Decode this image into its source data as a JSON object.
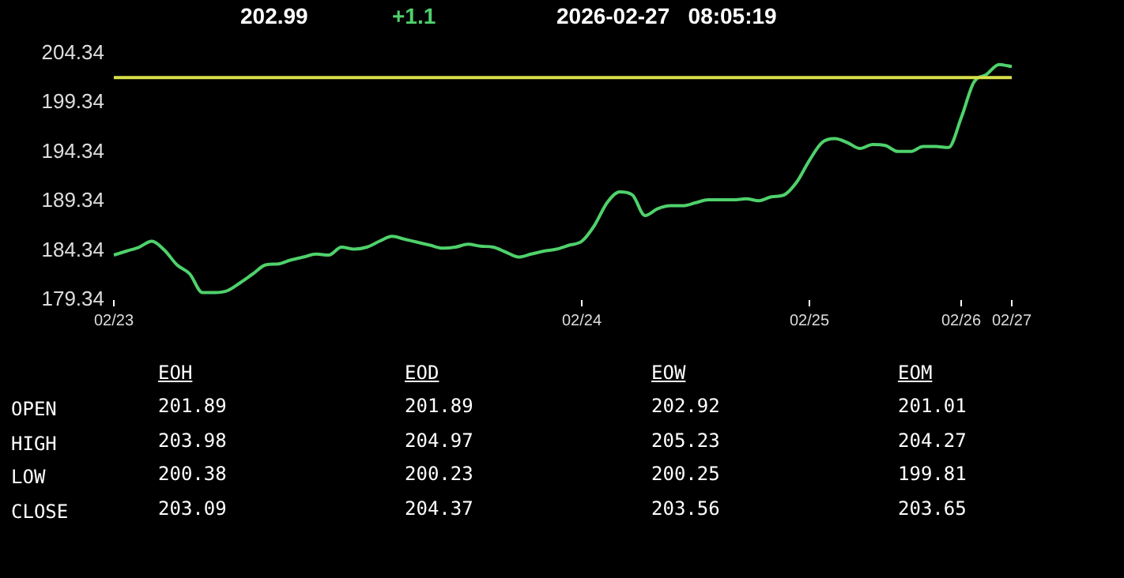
{
  "chart_data": [
    {
      "type": "line",
      "annotations": [
        "202.99",
        "+1.1",
        "2026-02-27   08:05:19"
      ],
      "categories": [
        "02/23",
        null,
        null,
        null,
        null,
        null,
        null,
        null,
        null,
        null,
        null,
        null,
        null,
        null,
        null,
        null,
        null,
        null,
        null,
        null,
        null,
        null,
        null,
        null,
        null,
        null,
        null,
        null,
        null,
        null,
        null,
        null,
        null,
        null,
        null,
        null,
        null,
        "02/24",
        null,
        null,
        null,
        null,
        null,
        null,
        null,
        null,
        null,
        null,
        null,
        null,
        null,
        null,
        null,
        null,
        null,
        "02/25",
        null,
        null,
        null,
        null,
        null,
        null,
        null,
        null,
        null,
        null,
        null,
        "02/26",
        null,
        null,
        null,
        "02/27"
      ],
      "ylim": [
        179.34,
        204.34
      ],
      "yticks": [
        179.34,
        184.34,
        189.34,
        194.34,
        199.34,
        204.34
      ],
      "series": [
        {
          "color": "#4fd16b",
          "values": [
            183.9,
            184.3,
            184.7,
            185.3,
            184.4,
            182.9,
            182.0,
            180.1,
            180.1,
            180.3,
            181.1,
            182.0,
            182.9,
            183.0,
            183.4,
            183.7,
            184.0,
            183.9,
            184.7,
            184.5,
            184.7,
            185.3,
            185.8,
            185.5,
            185.2,
            184.9,
            184.6,
            184.7,
            185.0,
            184.8,
            184.7,
            184.2,
            183.7,
            184.0,
            184.3,
            184.5,
            184.9,
            185.3,
            186.9,
            189.2,
            190.3,
            190.0,
            187.9,
            188.6,
            188.9,
            188.9,
            189.2,
            189.5,
            189.5,
            189.5,
            189.6,
            189.4,
            189.8,
            190.0,
            191.3,
            193.5,
            195.3,
            195.7,
            195.3,
            194.7,
            195.1,
            195.0,
            194.4,
            194.4,
            194.9,
            194.9,
            194.8,
            197.8,
            201.4,
            202.2,
            203.2,
            203.0
          ]
        }
      ],
      "ref_lines": [
        {
          "axis": "y",
          "value": 201.89,
          "color": "#d8e04a"
        }
      ],
      "grid": false,
      "legend": false,
      "marker": "none",
      "line_style": "solid"
    },
    {
      "type": "heatmap",
      "categories": [
        "EOH",
        "EOD",
        "EOW",
        "EOM"
      ],
      "y_categories": [
        "OPEN",
        "HIGH",
        "LOW",
        "CLOSE"
      ],
      "cells": [
        [
          201.89,
          201.89,
          202.92,
          201.01
        ],
        [
          203.98,
          204.97,
          205.23,
          204.27
        ],
        [
          200.38,
          200.23,
          200.25,
          199.81
        ],
        [
          203.09,
          204.37,
          203.56,
          203.65
        ]
      ],
      "data_labels": true
    }
  ]
}
